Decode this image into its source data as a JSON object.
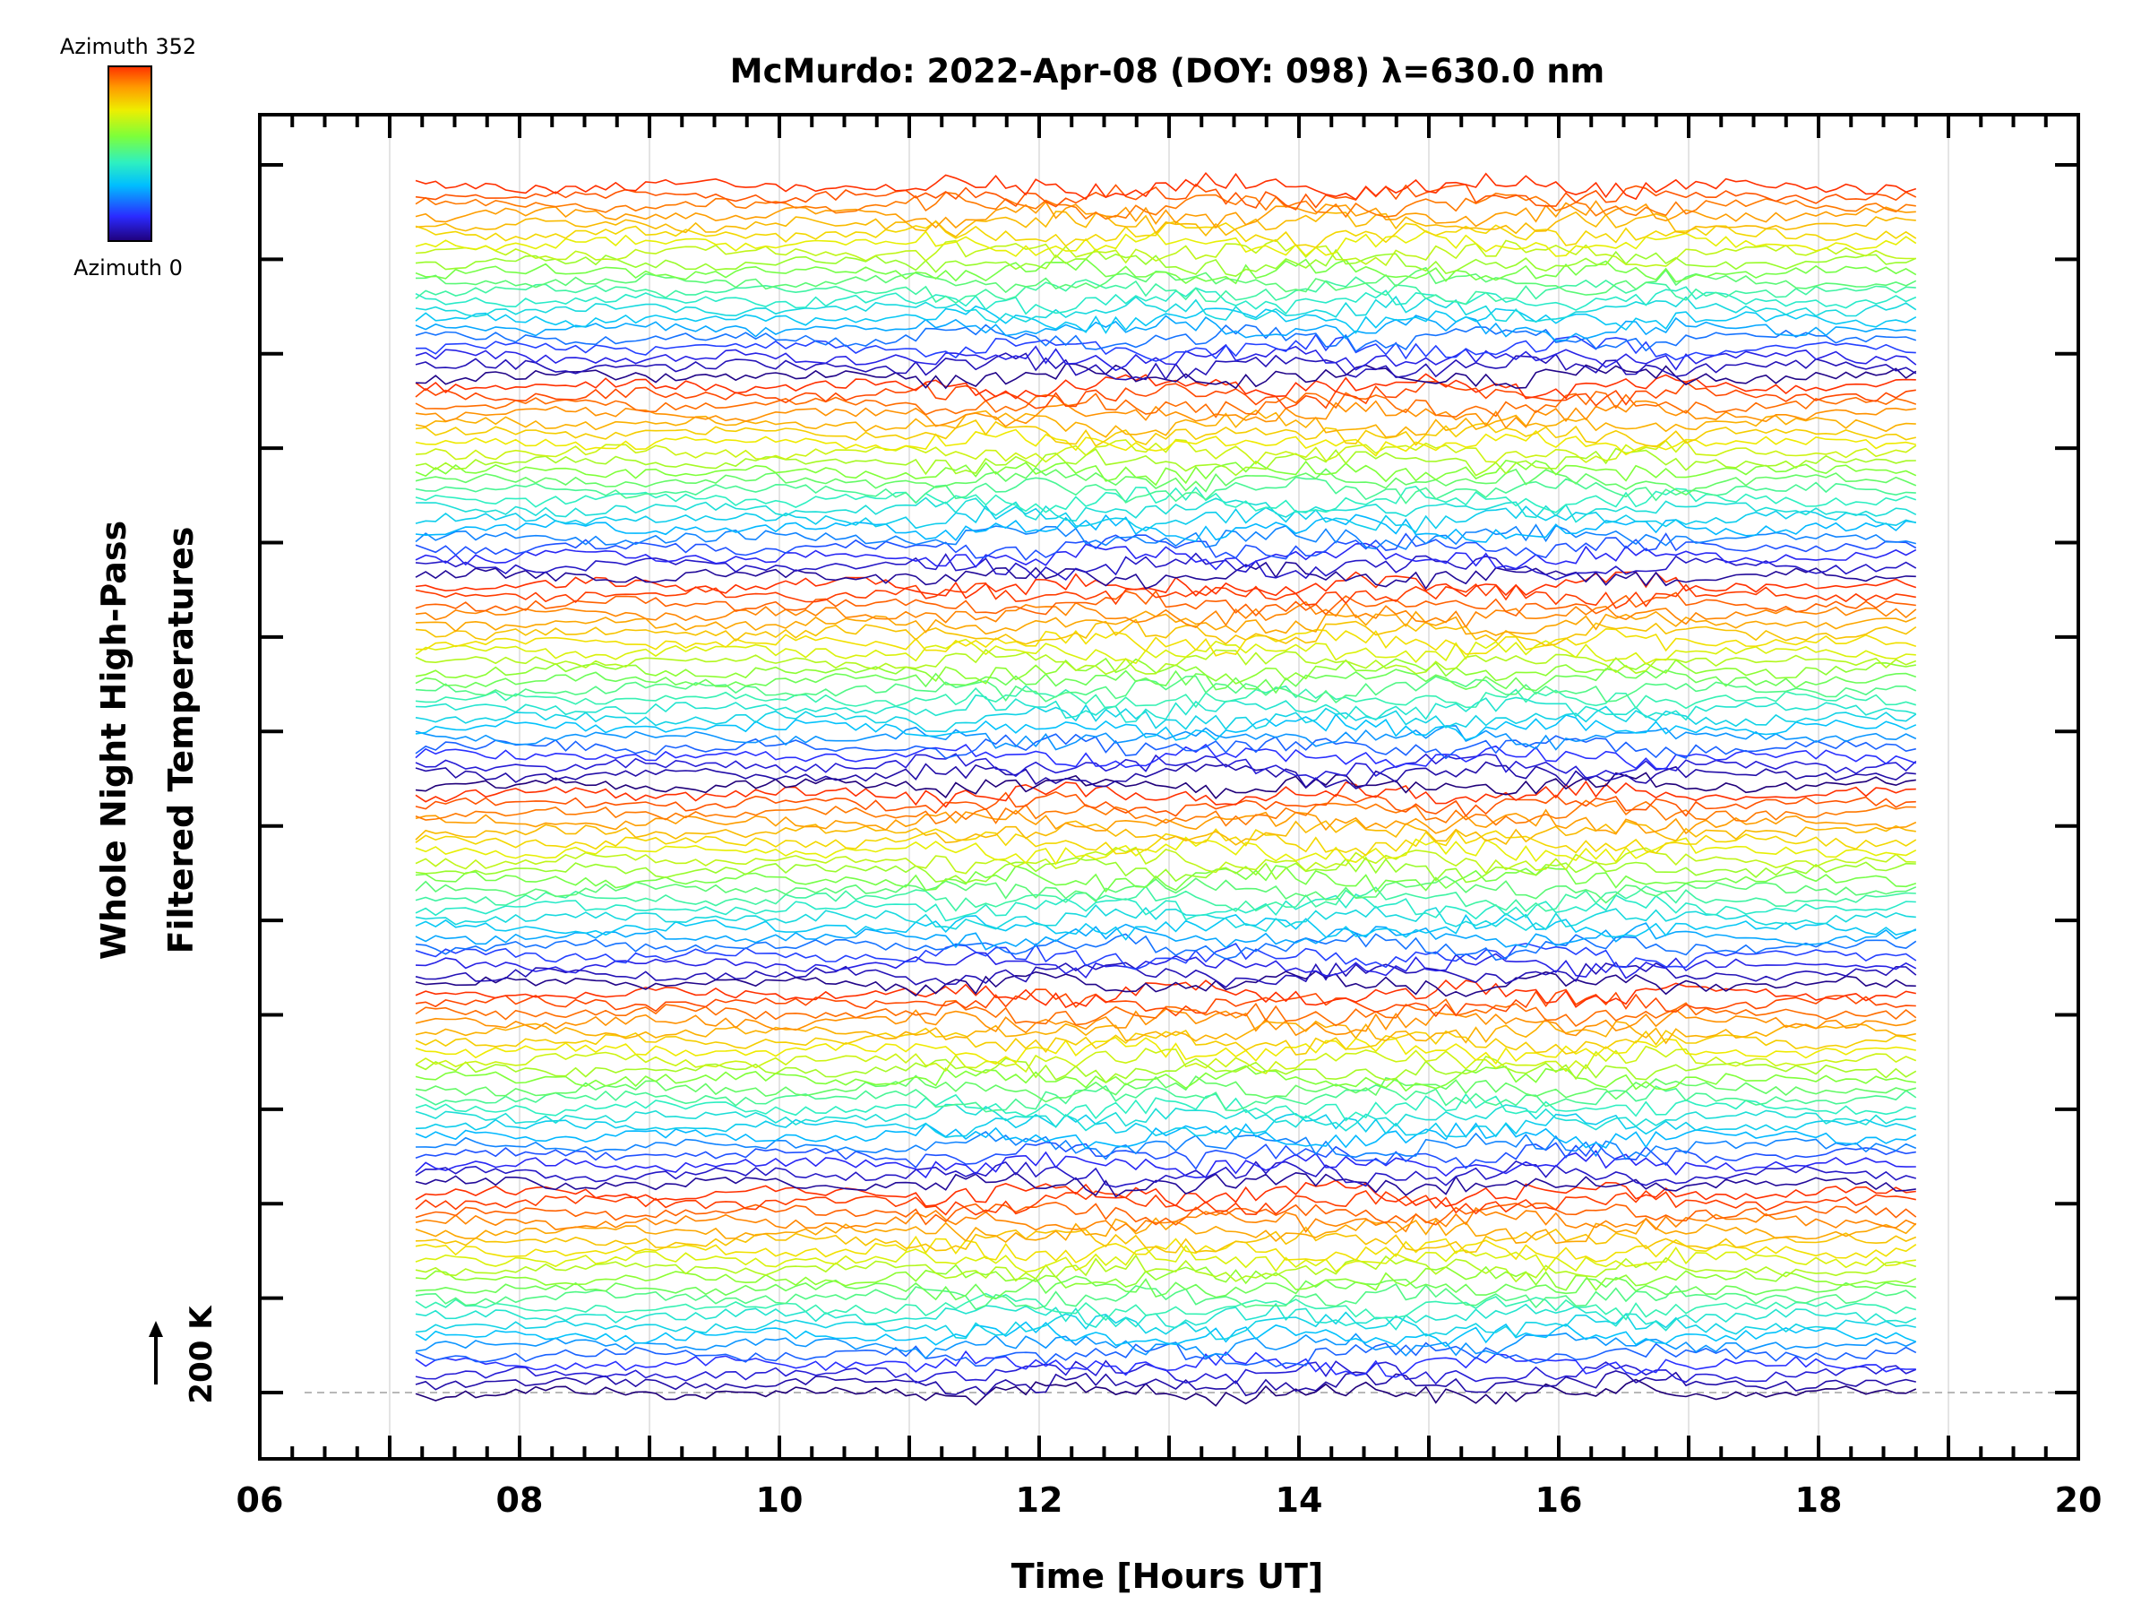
{
  "chart_data": {
    "type": "line",
    "title": "McMurdo: 2022-Apr-08 (DOY: 098) λ=630.0 nm",
    "xlabel": "Time [Hours UT]",
    "ylabel_line1": "Whole Night High-Pass",
    "ylabel_line2": "Filtered Temperatures",
    "scale_label": "200 K",
    "xlim": [
      6,
      20
    ],
    "x_tick_labels": [
      "06",
      "08",
      "10",
      "12",
      "14",
      "16",
      "18",
      "20"
    ],
    "x_data_range": [
      7.2,
      18.75
    ],
    "colorbar": {
      "top_label": "Azimuth 352",
      "bottom_label": "Azimuth 0",
      "colormap": "rainbow",
      "stops": [
        "#20007a",
        "#2a2aff",
        "#00bfff",
        "#2ef0c0",
        "#7dff3a",
        "#eeee00",
        "#ff9a00",
        "#ff3000"
      ]
    },
    "series_count": 128,
    "groups": 6,
    "grid": "vertical",
    "baseline_dashed": true
  }
}
